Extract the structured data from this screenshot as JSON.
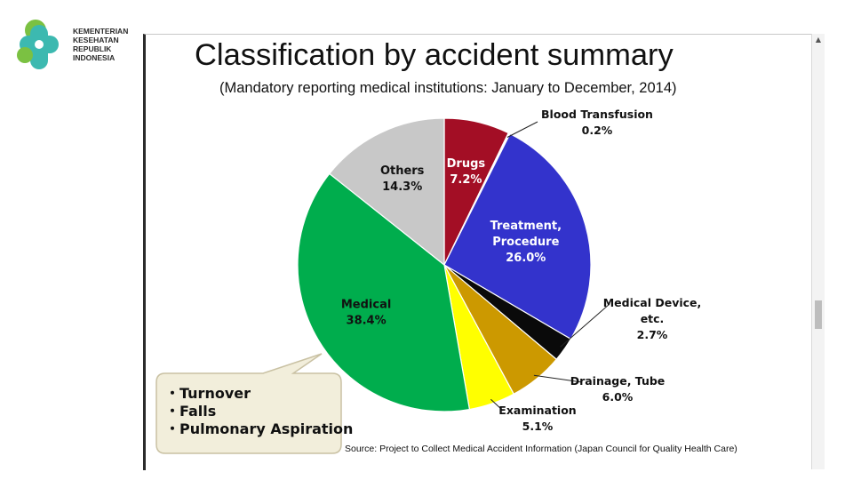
{
  "logo": {
    "lines": [
      "KEMENTERIAN",
      "KESEHATAN",
      "REPUBLIK",
      "INDONESIA"
    ],
    "colors": {
      "teal": "#3cb9b0",
      "green": "#7bc142"
    }
  },
  "chart_data": {
    "type": "pie",
    "title": "Classification by accident summary",
    "subtitle": "(Mandatory reporting medical institutions: January to December, 2014)",
    "slices": [
      {
        "label": "Drugs",
        "value": 7.2,
        "value_label": "7.2%",
        "color": "#a30e25"
      },
      {
        "label": "Blood Transfusion",
        "value": 0.2,
        "value_label": "0.2%",
        "color": "#ffffff"
      },
      {
        "label": "Treatment, Procedure",
        "value": 26.0,
        "value_label": "26.0%",
        "color": "#3333cc"
      },
      {
        "label": "Medical Device, etc.",
        "value": 2.7,
        "value_label": "2.7%",
        "color": "#0a0a0a"
      },
      {
        "label": "Drainage, Tube",
        "value": 6.0,
        "value_label": "6.0%",
        "color": "#cc9900"
      },
      {
        "label": "Examination",
        "value": 5.1,
        "value_label": "5.1%",
        "color": "#ffff00"
      },
      {
        "label": "Medical",
        "value": 38.4,
        "value_label": "38.4%",
        "color": "#00ad4d"
      },
      {
        "label": "Others",
        "value": 14.3,
        "value_label": "14.3%",
        "color": "#c8c8c8"
      }
    ],
    "callout": [
      "・Turnover",
      "・Falls",
      "・Pulmonary Aspiration"
    ],
    "source": "Source:   Project to Collect Medical Accident Information  (Japan Council for Quality Health Care)",
    "legend": "none"
  }
}
